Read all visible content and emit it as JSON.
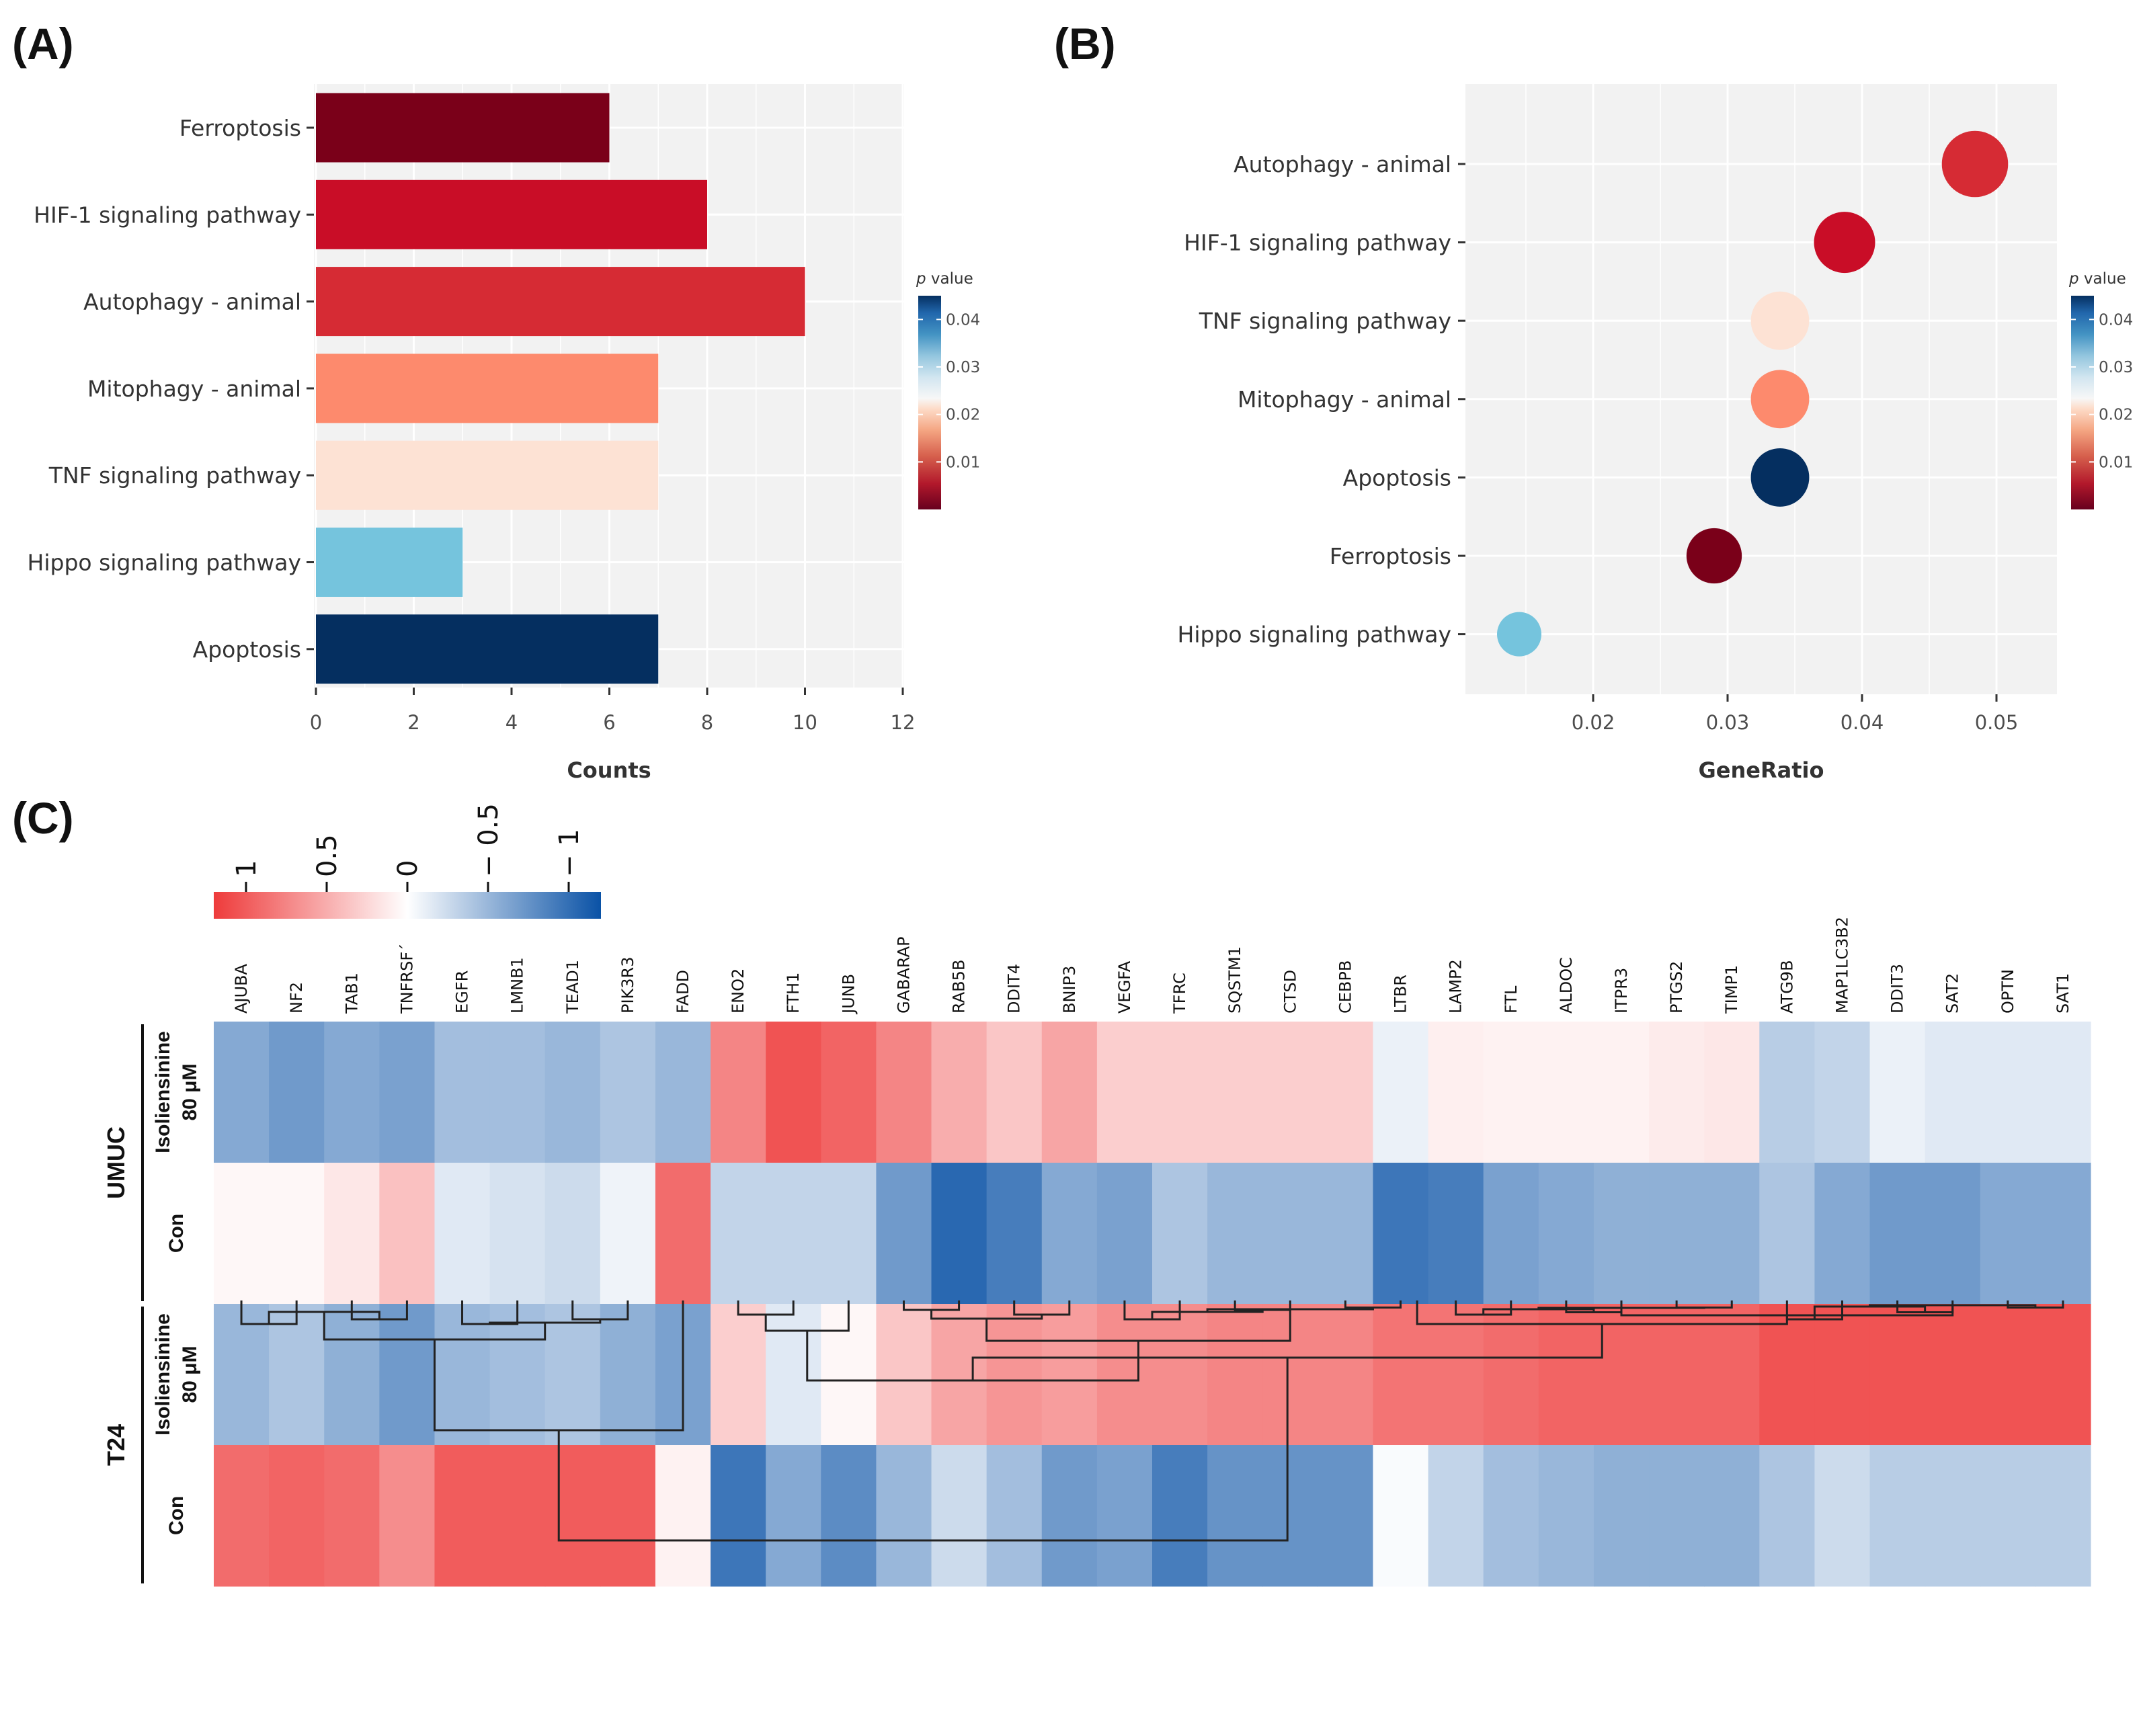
{
  "panels": {
    "a_label": "(A)",
    "b_label": "(B)",
    "c_label": "(C)"
  },
  "chart_data": [
    {
      "id": "A",
      "type": "bar",
      "orientation": "horizontal",
      "categories": [
        "Ferroptosis",
        "HIF-1 signaling pathway",
        "Autophagy - animal",
        "Mitophagy - animal",
        "TNF signaling pathway",
        "Hippo signaling pathway",
        "Apoptosis"
      ],
      "values": [
        6,
        8,
        10,
        7,
        7,
        3,
        7
      ],
      "colors": [
        "#7a0019",
        "#c90d27",
        "#d62b34",
        "#fd8a6d",
        "#fde2d4",
        "#75c4dd",
        "#052f60"
      ],
      "xlabel": "Counts",
      "xlim": [
        0,
        12
      ],
      "xticks": [
        "0",
        "2",
        "4",
        "6",
        "8",
        "10",
        "12"
      ],
      "legend": {
        "title_italic": "p",
        "title_rest": " value",
        "ticks": [
          "0.04",
          "0.03",
          "0.02",
          "0.01"
        ],
        "tick_values": [
          0.04,
          0.03,
          0.02,
          0.01
        ],
        "range": [
          0.0,
          0.045
        ],
        "placement": "right"
      }
    },
    {
      "id": "B",
      "type": "scatter",
      "categories": [
        "Autophagy - animal",
        "HIF-1 signaling pathway",
        "TNF signaling pathway",
        "Mitophagy - animal",
        "Apoptosis",
        "Ferroptosis",
        "Hippo signaling pathway"
      ],
      "gene_ratio": [
        0.0484,
        0.0387,
        0.0339,
        0.0339,
        0.0339,
        0.029,
        0.0145
      ],
      "counts": [
        10,
        8,
        7,
        7,
        7,
        6,
        3
      ],
      "colors": [
        "#d62b34",
        "#c90d27",
        "#fde2d4",
        "#fd8a6d",
        "#052f60",
        "#7a0019",
        "#75c4dd"
      ],
      "xlabel": "GeneRatio",
      "xlim": [
        0.0105,
        0.0545
      ],
      "xticks": [
        "0.02",
        "0.03",
        "0.04",
        "0.05"
      ],
      "xtick_values": [
        0.02,
        0.03,
        0.04,
        0.05
      ],
      "legend": {
        "title_italic": "p",
        "title_rest": " value",
        "ticks": [
          "0.04",
          "0.03",
          "0.02",
          "0.01"
        ],
        "tick_values": [
          0.04,
          0.03,
          0.02,
          0.01
        ],
        "range": [
          0.0,
          0.045
        ],
        "placement": "right"
      }
    },
    {
      "id": "C",
      "type": "heatmap",
      "genes": [
        "AJUBA",
        "NF2",
        "TAB1",
        "TNFRSF´",
        "EGFR",
        "LMNB1",
        "TEAD1",
        "PIK3R3",
        "FADD",
        "ENO2",
        "FTH1",
        "JUNB",
        "GABARAP",
        "RAB5B",
        "DDIT4",
        "BNIP3",
        "VEGFA",
        "TFRC",
        "SQSTM1",
        "CTSD",
        "CEBPB",
        "LTBR",
        "LAMP2",
        "FTL",
        "ALDOC",
        "ITPR3",
        "PTGS2",
        "TIMP1",
        "ATG9B",
        "MAP1LC3B2",
        "DDIT3",
        "SAT2",
        "OPTN",
        "SAT1"
      ],
      "groups": [
        {
          "name": "UMUC",
          "rows": [
            {
              "label1": "Isoliensinine",
              "label2": "80 μM"
            },
            {
              "label1": "Con",
              "label2": ""
            }
          ]
        },
        {
          "name": "T24",
          "rows": [
            {
              "label1": "Isoliensinine",
              "label2": "80 μM"
            },
            {
              "label1": "Con",
              "label2": ""
            }
          ]
        }
      ],
      "values": [
        [
          -0.6,
          -0.7,
          -0.6,
          -0.65,
          -0.45,
          -0.45,
          -0.5,
          -0.4,
          -0.5,
          0.75,
          1.05,
          0.95,
          0.75,
          0.5,
          0.35,
          0.55,
          0.3,
          0.3,
          0.3,
          0.3,
          0.3,
          -0.1,
          0.1,
          0.08,
          0.08,
          0.08,
          0.12,
          0.15,
          -0.35,
          -0.3,
          -0.1,
          -0.15,
          -0.15,
          -0.15
        ],
        [
          0.05,
          0.05,
          0.15,
          0.38,
          -0.15,
          -0.2,
          -0.25,
          -0.08,
          0.9,
          -0.3,
          -0.3,
          -0.3,
          -0.7,
          -1.05,
          -0.9,
          -0.6,
          -0.65,
          -0.4,
          -0.5,
          -0.5,
          -0.5,
          -0.95,
          -0.9,
          -0.65,
          -0.6,
          -0.55,
          -0.55,
          -0.55,
          -0.4,
          -0.6,
          -0.7,
          -0.7,
          -0.6,
          -0.6
        ],
        [
          -0.5,
          -0.4,
          -0.55,
          -0.7,
          -0.5,
          -0.45,
          -0.4,
          -0.55,
          -0.65,
          0.3,
          -0.15,
          0.05,
          0.35,
          0.55,
          0.65,
          0.6,
          0.7,
          0.7,
          0.75,
          0.75,
          0.75,
          0.85,
          0.85,
          0.9,
          0.95,
          0.95,
          0.95,
          0.95,
          1.05,
          1.05,
          1.05,
          1.05,
          1.05,
          1.05
        ],
        [
          0.9,
          0.95,
          0.9,
          0.7,
          1.0,
          1.0,
          1.0,
          1.0,
          0.08,
          -0.95,
          -0.6,
          -0.8,
          -0.5,
          -0.25,
          -0.45,
          -0.7,
          -0.65,
          -0.9,
          -0.75,
          -0.75,
          -0.75,
          -0.03,
          -0.3,
          -0.45,
          -0.5,
          -0.55,
          -0.55,
          -0.55,
          -0.4,
          -0.25,
          -0.35,
          -0.35,
          -0.35,
          -0.35
        ]
      ],
      "legend": {
        "ticks": [
          "1",
          "0.5",
          "0",
          "− 0.5",
          "− 1"
        ],
        "tick_values": [
          1,
          0.5,
          0,
          -0.5,
          -1
        ],
        "range": [
          1.2,
          -1.2
        ],
        "placement": "top-left"
      },
      "dendrogram": "column clustering tree beneath heatmap"
    }
  ]
}
